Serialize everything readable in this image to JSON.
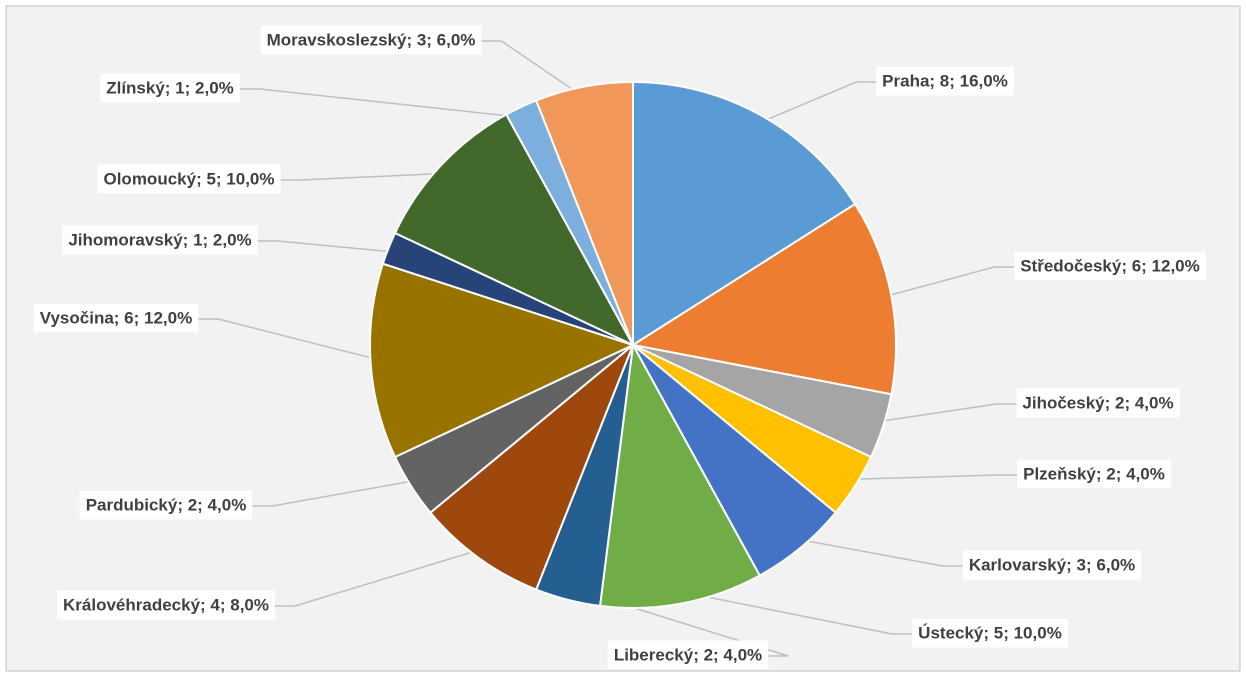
{
  "chart_data": {
    "type": "pie",
    "values": [
      8,
      6,
      2,
      2,
      3,
      5,
      2,
      4,
      2,
      6,
      1,
      5,
      1,
      3
    ],
    "value_labels": [
      "Praha; 8; 16,0%",
      "Středočeský; 6; 12,0%",
      "Jihočeský; 2; 4,0%",
      "Plzeňský; 2; 4,0%",
      "Karlovarský; 3; 6,0%",
      "Ústecký; 5; 10,0%",
      "Liberecký; 2; 4,0%",
      "Královéhradecký; 4; 8,0%",
      "Pardubický; 2; 4,0%",
      "Vysočina; 6; 12,0%",
      "Jihomoravský; 1; 2,0%",
      "Olomoucký; 5; 10,0%",
      "Zlínský; 1; 2,0%",
      "Moravskoslezský; 3; 6,0%"
    ],
    "colors": [
      "#5b9bd5",
      "#ed7d31",
      "#a5a5a5",
      "#ffc000",
      "#4472c4",
      "#70ad47",
      "#255e91",
      "#9e480e",
      "#636363",
      "#997300",
      "#264478",
      "#43682b",
      "#7cafdd",
      "#f1975a"
    ]
  }
}
